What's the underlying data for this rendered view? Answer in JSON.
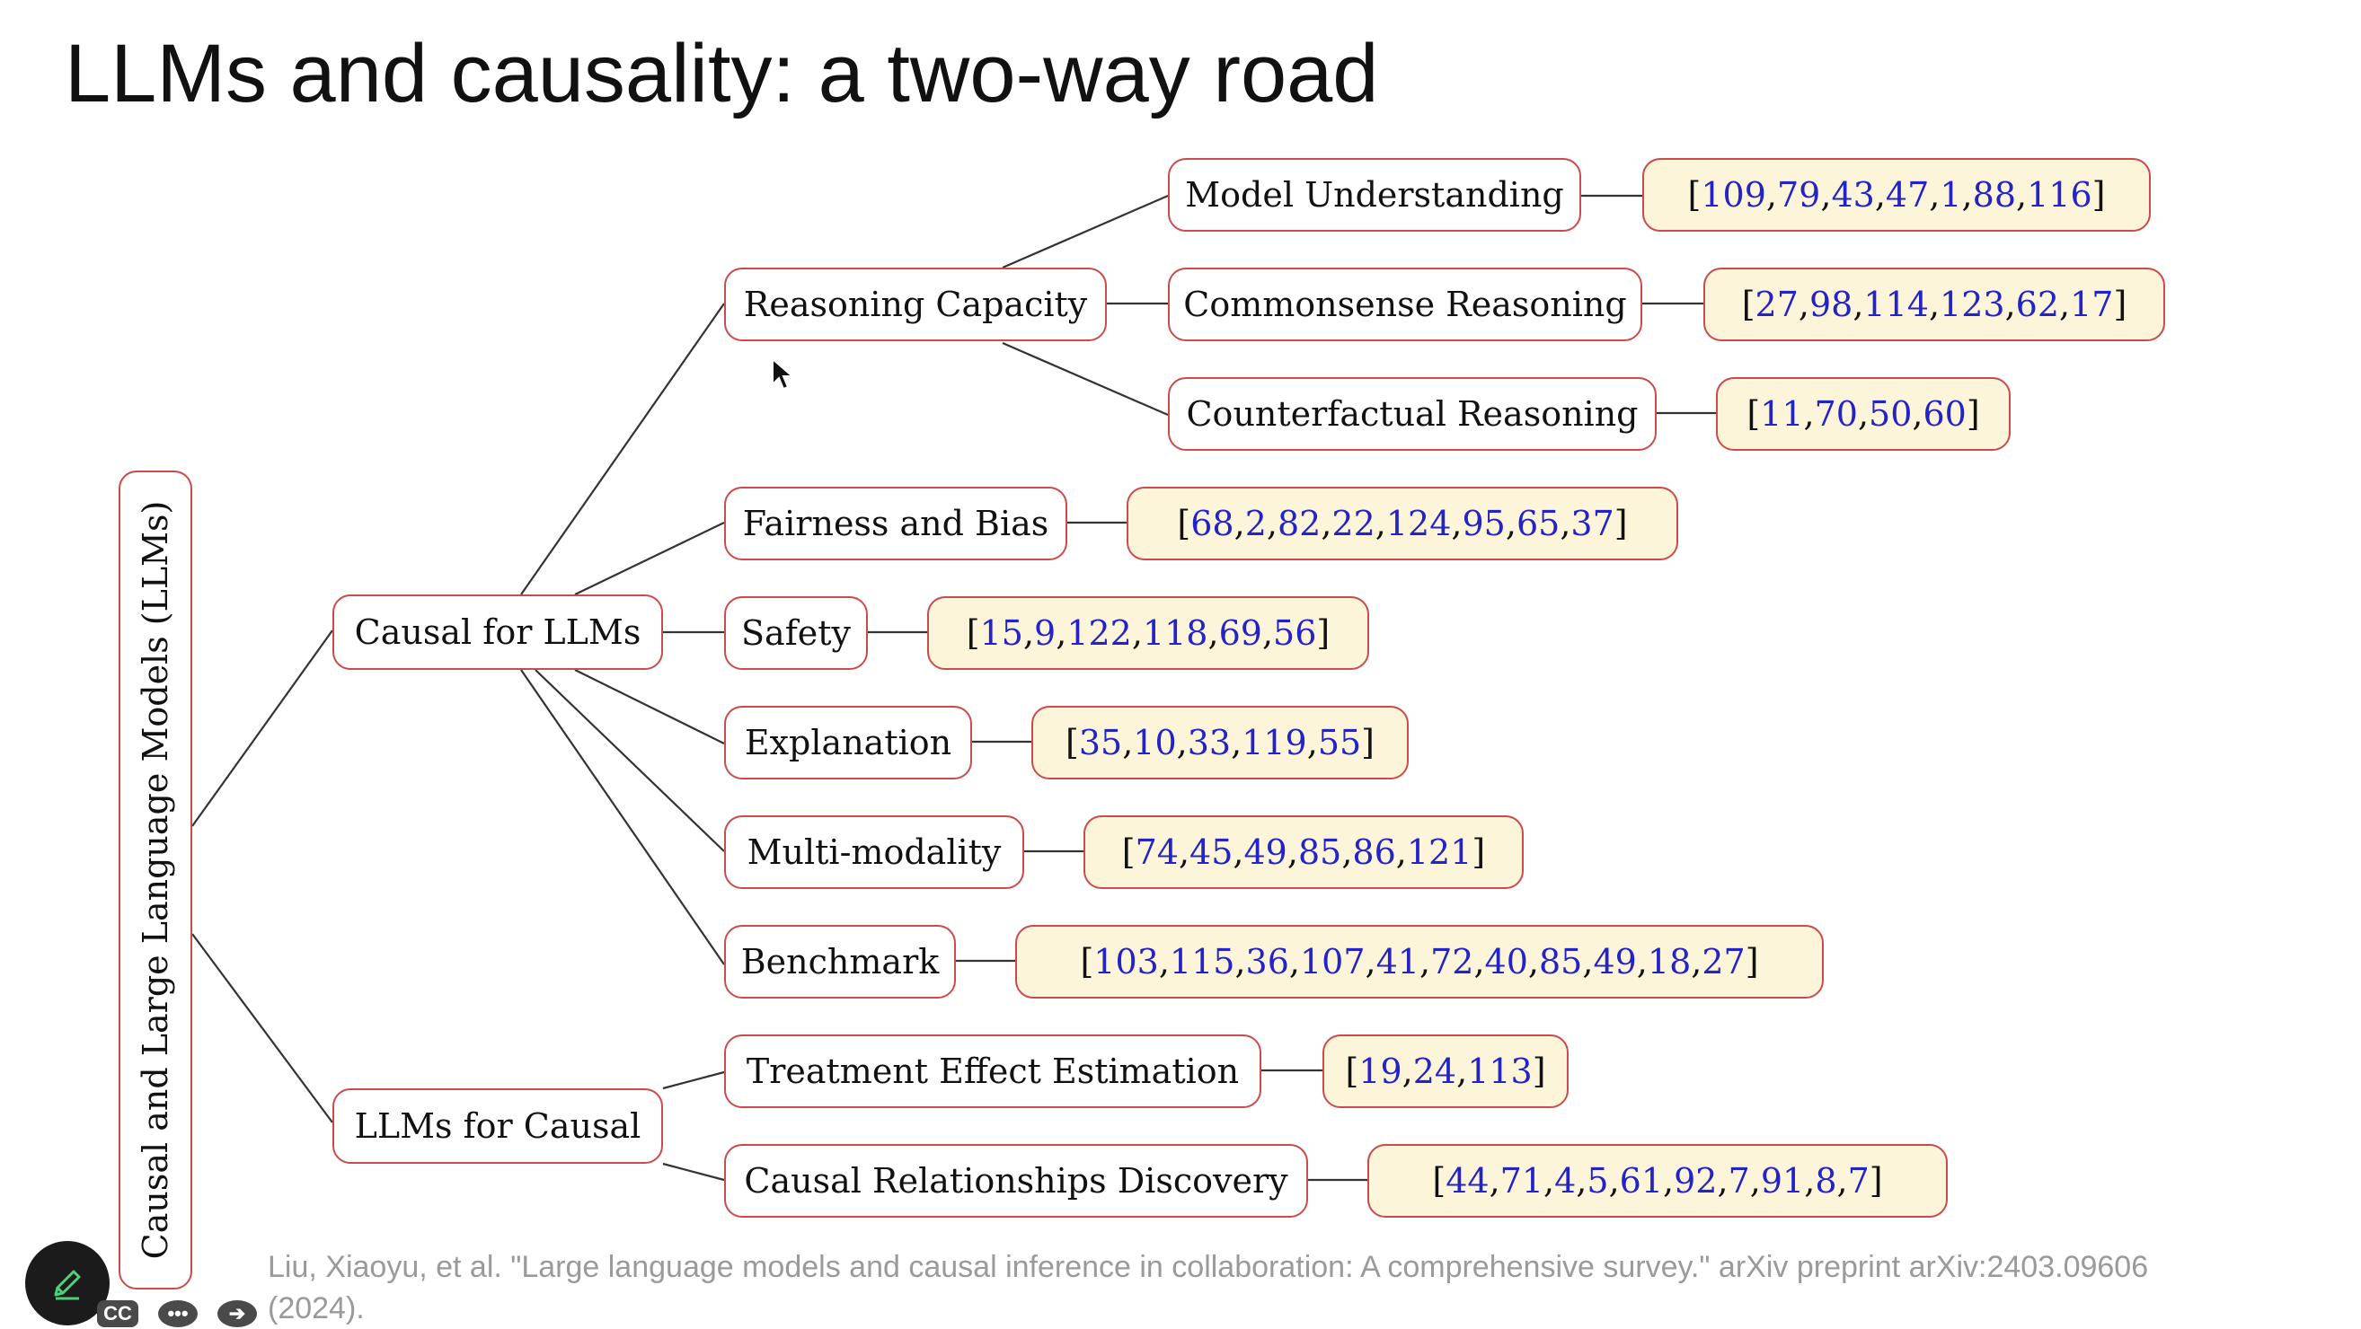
{
  "title": "LLMs and causality: a two-way road",
  "root": {
    "label": "Causal and Large Language Models (LLMs)"
  },
  "branches": {
    "causal_for_llms": "Causal for LLMs",
    "llms_for_causal": "LLMs for Causal"
  },
  "nodes": {
    "reasoning_capacity": "Reasoning Capacity",
    "model_understanding": "Model Understanding",
    "commonsense_reasoning": "Commonsense Reasoning",
    "counterfactual_reasoning": "Counterfactual Reasoning",
    "fairness_and_bias": "Fairness and Bias",
    "safety": "Safety",
    "explanation": "Explanation",
    "multi_modality": "Multi-modality",
    "benchmark": "Benchmark",
    "treatment_effect_estimation": "Treatment Effect Estimation",
    "causal_relationships_discovery": "Causal Relationships Discovery"
  },
  "refs": {
    "model_understanding": [
      "109",
      "79",
      "43",
      "47",
      "1",
      "88",
      "116"
    ],
    "commonsense_reasoning": [
      "27",
      "98",
      "114",
      "123",
      "62",
      "17"
    ],
    "counterfactual_reasoning": [
      "11",
      "70",
      "50",
      "60"
    ],
    "fairness_and_bias": [
      "68",
      "2",
      "82",
      "22",
      "124",
      "95",
      "65",
      "37"
    ],
    "safety": [
      "15",
      "9",
      "122",
      "118",
      "69",
      "56"
    ],
    "explanation": [
      "35",
      "10",
      "33",
      "119",
      "55"
    ],
    "multi_modality": [
      "74",
      "45",
      "49",
      "85",
      "86",
      "121"
    ],
    "benchmark": [
      "103",
      "115",
      "36",
      "107",
      "41",
      "72",
      "40",
      "85",
      "49",
      "18",
      "27"
    ],
    "treatment_effect_estimation": [
      "19",
      "24",
      "113"
    ],
    "causal_relationships_discovery": [
      "44",
      "71",
      "4",
      "5",
      "61",
      "92",
      "7",
      "91",
      "8",
      "7"
    ]
  },
  "citation": "Liu, Xiaoyu, et al. \"Large language models and causal inference in collaboration: A comprehensive survey.\" arXiv preprint arXiv:2403.09606 (2024).",
  "toolbar": {
    "cc_label": "CC",
    "more_label": "•••",
    "next_label": "➔"
  },
  "colors": {
    "node_border": "#cc4a4a",
    "ref_fill": "#fcf5d9",
    "ref_number": "#2323c7"
  }
}
